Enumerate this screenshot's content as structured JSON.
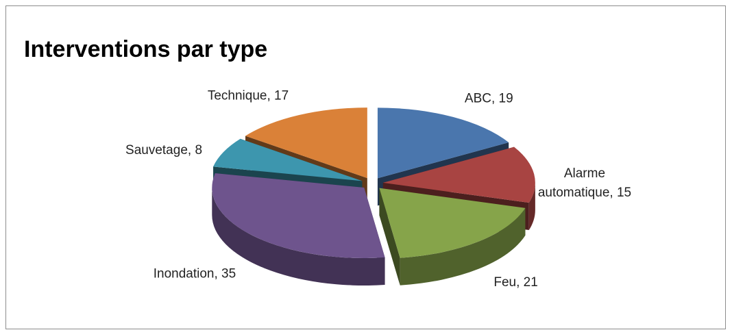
{
  "chart_data": {
    "type": "pie3d",
    "title": "Interventions par type",
    "values": [
      19,
      15,
      21,
      35,
      8,
      17
    ],
    "value_labels": [
      "ABC, 19",
      "Alarme automatique, 15",
      "Feu, 21",
      "Inondation, 35",
      "Sauvetage, 8",
      "Technique, 17"
    ],
    "colors": [
      "#4a76ad",
      "#a84442",
      "#86a44a",
      "#6e548d",
      "#3d96ae",
      "#da8138"
    ]
  }
}
